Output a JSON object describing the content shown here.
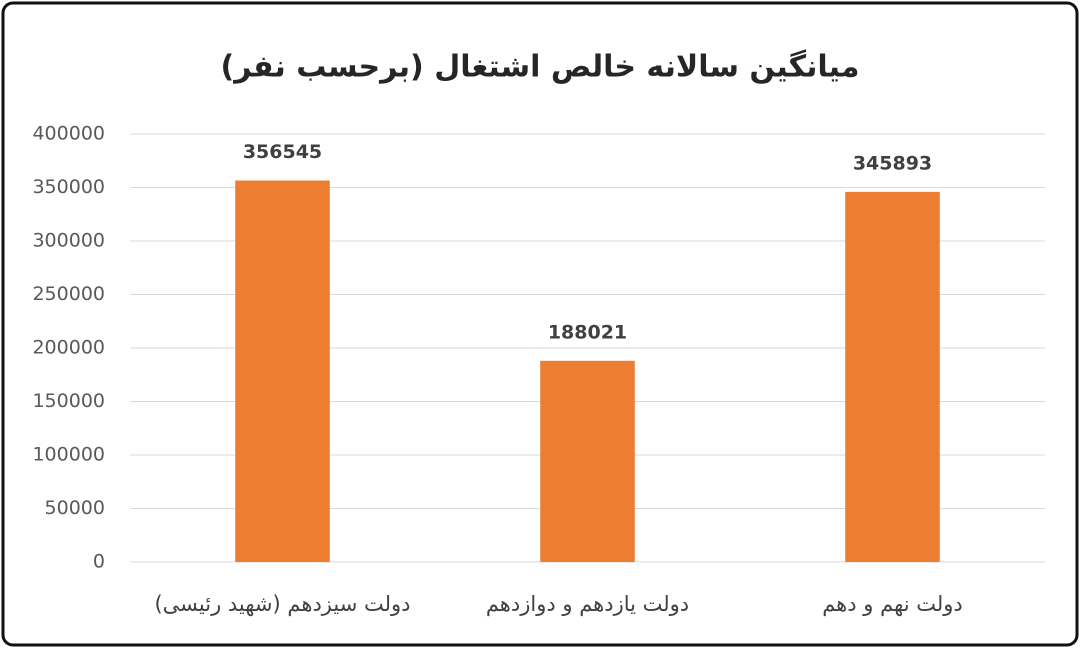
{
  "chart_data": {
    "type": "bar",
    "title": "میانگین سالانه خالص اشتغال (برحسب نفر)",
    "categories": [
      "دولت سیزدهم (شهید رئیسی)",
      "دولت یازدهم و دوازدهم",
      "دولت نهم و دهم"
    ],
    "values": [
      356545,
      188021,
      345893
    ],
    "color": "#ed7d31",
    "ylim": [
      0,
      400000
    ],
    "yticks": [
      0,
      50000,
      100000,
      150000,
      200000,
      250000,
      300000,
      350000,
      400000
    ],
    "grid": true
  }
}
